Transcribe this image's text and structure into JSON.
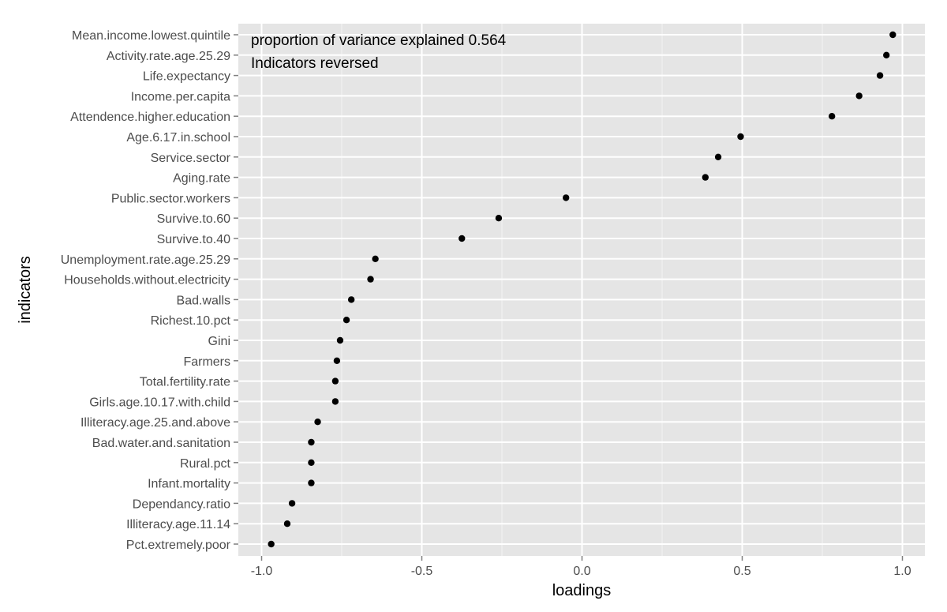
{
  "chart_data": {
    "type": "scatter",
    "xlabel": "loadings",
    "ylabel": "indicators",
    "xlim": [
      -1.07,
      1.07
    ],
    "xticks": [
      -1.0,
      -0.5,
      0.0,
      0.5,
      1.0
    ],
    "xtick_labels": [
      "-1.0",
      "-0.5",
      "0.0",
      "0.5",
      "1.0"
    ],
    "grid": true,
    "annotations": [
      "proportion of variance explained 0.564",
      "Indicators reversed"
    ],
    "points": [
      {
        "label": "Mean.income.lowest.quintile",
        "value": 0.97
      },
      {
        "label": "Activity.rate.age.25.29",
        "value": 0.95
      },
      {
        "label": "Life.expectancy",
        "value": 0.93
      },
      {
        "label": "Income.per.capita",
        "value": 0.865
      },
      {
        "label": "Attendence.higher.education",
        "value": 0.78
      },
      {
        "label": "Age.6.17.in.school",
        "value": 0.495
      },
      {
        "label": "Service.sector",
        "value": 0.425
      },
      {
        "label": "Aging.rate",
        "value": 0.385
      },
      {
        "label": "Public.sector.workers",
        "value": -0.05
      },
      {
        "label": "Survive.to.60",
        "value": -0.26
      },
      {
        "label": "Survive.to.40",
        "value": -0.375
      },
      {
        "label": "Unemployment.rate.age.25.29",
        "value": -0.645
      },
      {
        "label": "Households.without.electricity",
        "value": -0.66
      },
      {
        "label": "Bad.walls",
        "value": -0.72
      },
      {
        "label": "Richest.10.pct",
        "value": -0.735
      },
      {
        "label": "Gini",
        "value": -0.755
      },
      {
        "label": "Farmers",
        "value": -0.765
      },
      {
        "label": "Total.fertility.rate",
        "value": -0.77
      },
      {
        "label": "Girls.age.10.17.with.child",
        "value": -0.77
      },
      {
        "label": "Illiteracy.age.25.and.above",
        "value": -0.825
      },
      {
        "label": "Bad.water.and.sanitation",
        "value": -0.845
      },
      {
        "label": "Rural.pct",
        "value": -0.845
      },
      {
        "label": "Infant.mortality",
        "value": -0.845
      },
      {
        "label": "Dependancy.ratio",
        "value": -0.905
      },
      {
        "label": "Illiteracy.age.11.14",
        "value": -0.92
      },
      {
        "label": "Pct.extremely.poor",
        "value": -0.97
      }
    ]
  }
}
